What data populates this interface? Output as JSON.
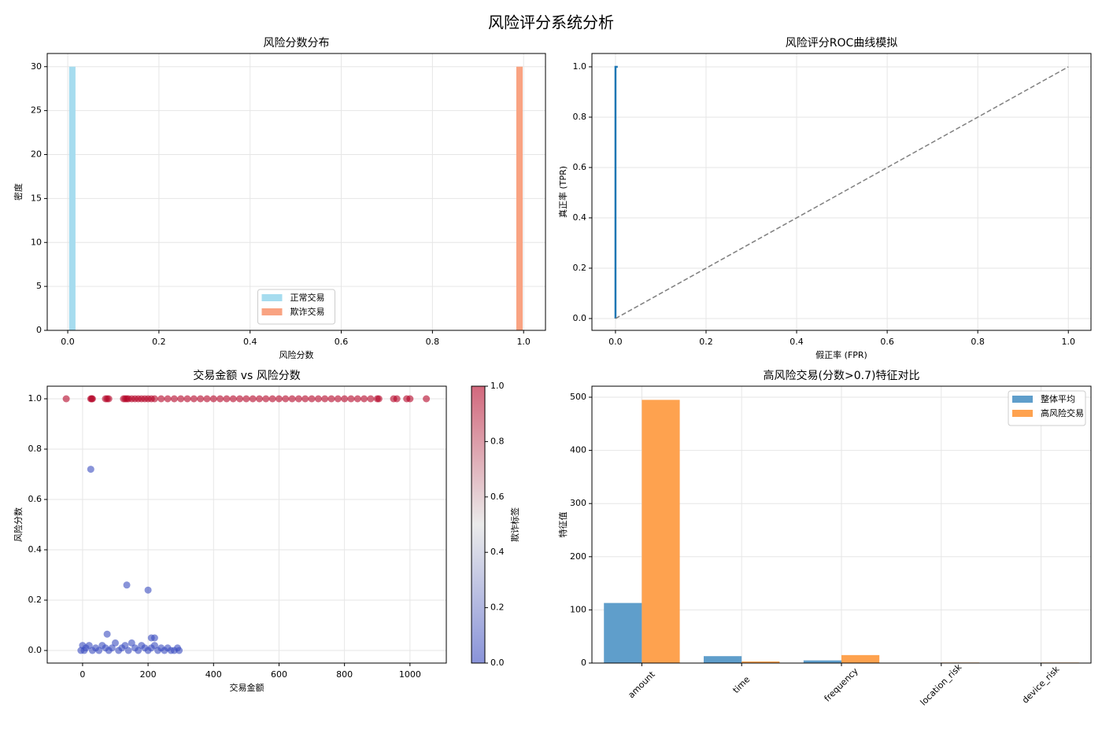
{
  "title": "风险评分系统分析",
  "chart_data": [
    {
      "type": "histogram",
      "title": "风险分数分布",
      "xlabel": "风险分数",
      "ylabel": "密度",
      "series": [
        {
          "name": "正常交易",
          "color": "#a6dcef",
          "bins": [
            0.003,
            0.017
          ],
          "values": [
            30
          ]
        },
        {
          "name": "欺诈交易",
          "color": "#f9a382",
          "bins": [
            0.984,
            0.998
          ],
          "values": [
            30
          ]
        }
      ],
      "xlim": [
        -0.045,
        1.048
      ],
      "ylim": [
        0,
        31.5
      ],
      "xticks": [
        {
          "value": 0,
          "label": "0.0"
        },
        0.2,
        0.4,
        0.6,
        0.8,
        {
          "value": 1,
          "label": "1.0"
        }
      ],
      "yticks": [
        0,
        5,
        10,
        15,
        20,
        25,
        30
      ],
      "grid": true,
      "legend": "lower center"
    },
    {
      "type": "line",
      "title": "风险评分ROC曲线模拟",
      "xlabel": "假正率 (FPR)",
      "ylabel": "真正率 (TPR)",
      "series": [
        {
          "color": "#1f77b4",
          "linestyle": "solid",
          "width": 2.5,
          "x": [
            0,
            0,
            0.005
          ],
          "values": [
            0,
            1,
            1
          ]
        },
        {
          "color": "#808080",
          "linestyle": "dashed",
          "width": 1.5,
          "x": [
            0,
            1
          ],
          "values": [
            0,
            1
          ]
        }
      ],
      "xlim": [
        -0.052,
        1.05
      ],
      "ylim": [
        -0.047,
        1.053
      ],
      "xticks": [
        {
          "value": 0,
          "label": "0.0"
        },
        0.2,
        0.4,
        0.6,
        0.8,
        {
          "value": 1,
          "label": "1.0"
        }
      ],
      "yticks": [
        {
          "value": 0,
          "label": "0.0"
        },
        0.2,
        0.4,
        0.6,
        0.8,
        {
          "value": 1,
          "label": "1.0"
        }
      ],
      "grid": true
    },
    {
      "type": "scatter",
      "title": "交易金额 vs 风险分数",
      "xlabel": "交易金额",
      "ylabel": "风险分数",
      "x": [
        -50,
        25,
        28,
        30,
        70,
        75,
        80,
        125,
        130,
        135,
        140,
        150,
        160,
        170,
        180,
        190,
        200,
        210,
        220,
        240,
        260,
        280,
        300,
        320,
        340,
        360,
        380,
        400,
        420,
        440,
        460,
        480,
        500,
        520,
        540,
        560,
        580,
        600,
        620,
        640,
        660,
        680,
        700,
        720,
        740,
        760,
        780,
        800,
        820,
        840,
        860,
        880,
        900,
        905,
        950,
        960,
        990,
        1000,
        1050,
        -5,
        0,
        5,
        10,
        20,
        30,
        40,
        50,
        60,
        70,
        80,
        90,
        100,
        110,
        120,
        130,
        140,
        150,
        160,
        170,
        180,
        190,
        200,
        210,
        220,
        230,
        240,
        250,
        260,
        270,
        280,
        290,
        295,
        25,
        135,
        200,
        75,
        210,
        220
      ],
      "values": [
        1,
        1,
        1,
        1,
        1,
        1,
        1,
        1,
        1,
        1,
        1,
        1,
        1,
        1,
        1,
        1,
        1,
        1,
        1,
        1,
        1,
        1,
        1,
        1,
        1,
        1,
        1,
        1,
        1,
        1,
        1,
        1,
        1,
        1,
        1,
        1,
        1,
        1,
        1,
        1,
        1,
        1,
        1,
        1,
        1,
        1,
        1,
        1,
        1,
        1,
        1,
        1,
        1,
        1,
        1,
        1,
        1,
        1,
        1,
        0,
        0.02,
        0,
        0.01,
        0.02,
        0,
        0.01,
        0,
        0.02,
        0.01,
        0,
        0.01,
        0.03,
        0,
        0.01,
        0.02,
        0,
        0.03,
        0.01,
        0,
        0.02,
        0.01,
        0,
        0.01,
        0.02,
        0,
        0.01,
        0,
        0.01,
        0,
        0,
        0.01,
        0,
        0.72,
        0.26,
        0.24,
        0.065,
        0.05,
        0.05
      ],
      "c": [
        1,
        1,
        1,
        1,
        1,
        1,
        1,
        1,
        1,
        1,
        1,
        1,
        1,
        1,
        1,
        1,
        1,
        1,
        1,
        1,
        1,
        1,
        1,
        1,
        1,
        1,
        1,
        1,
        1,
        1,
        1,
        1,
        1,
        1,
        1,
        1,
        1,
        1,
        1,
        1,
        1,
        1,
        1,
        1,
        1,
        1,
        1,
        1,
        1,
        1,
        1,
        1,
        1,
        1,
        1,
        1,
        1,
        1,
        1,
        0,
        0,
        0,
        0,
        0,
        0,
        0,
        0,
        0,
        0,
        0,
        0,
        0,
        0,
        0,
        0,
        0,
        0,
        0,
        0,
        0,
        0,
        0,
        0,
        0,
        0,
        0,
        0,
        0,
        0,
        0,
        0,
        0,
        0,
        0,
        0,
        0,
        0,
        0
      ],
      "colormap": [
        "#3b4cc0",
        "#dddddd",
        "#b40426"
      ],
      "alpha": 0.6,
      "xlim": [
        -108,
        1111
      ],
      "ylim": [
        -0.05,
        1.05
      ],
      "xticks": [
        0,
        200,
        400,
        600,
        800,
        1000
      ],
      "yticks": [
        {
          "value": 0,
          "label": "0.0"
        },
        0.2,
        0.4,
        0.6,
        0.8,
        {
          "value": 1,
          "label": "1.0"
        }
      ],
      "grid": true,
      "colorbar": {
        "label": "欺诈标签",
        "clim": [
          0,
          1
        ],
        "ticks": [
          {
            "value": 0,
            "label": "0.0"
          },
          0.2,
          0.4,
          0.6,
          0.8,
          {
            "value": 1,
            "label": "1.0"
          }
        ]
      }
    },
    {
      "type": "bar",
      "title": "高风险交易(分数>0.7)特征对比",
      "ylabel": "特征值",
      "categories": [
        "amount",
        "time",
        "frequency",
        "location_risk",
        "device_risk"
      ],
      "series": [
        {
          "name": "整体平均",
          "color": "#5f9ecb",
          "values": [
            113,
            13,
            5,
            0.5,
            0.4
          ]
        },
        {
          "name": "高风险交易",
          "color": "#fea24f",
          "values": [
            495,
            3,
            15,
            1,
            1
          ]
        }
      ],
      "ylim": [
        0,
        520.7
      ],
      "yticks": [
        0,
        100,
        200,
        300,
        400,
        500
      ],
      "grid": true,
      "legend": "upper right"
    }
  ]
}
